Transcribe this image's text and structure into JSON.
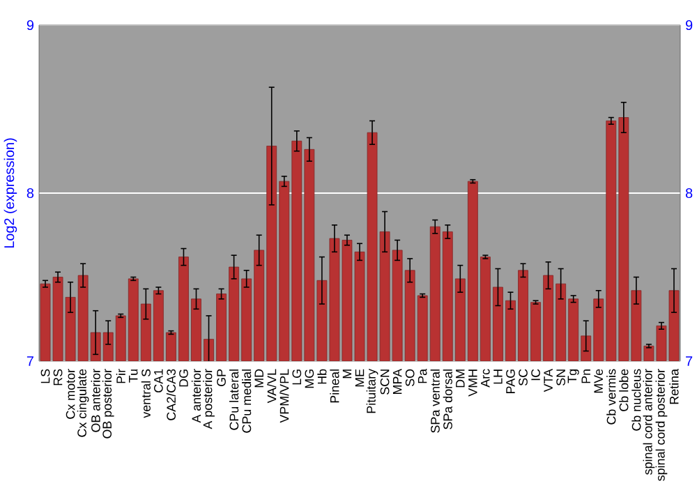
{
  "chart_data": {
    "type": "bar",
    "ylabel": "Log2 (expression)",
    "color": "#b83232",
    "categories": [
      "LS",
      "RS",
      "Cx motor",
      "Cx cingulate",
      "OB anterior",
      "OB posterior",
      "Pir",
      "Tu",
      "ventral S",
      "CA1",
      "CA2/CA3",
      "DG",
      "A anterior",
      "A posterior",
      "GP",
      "CPu lateral",
      "CPu medial",
      "MD",
      "VA/VL",
      "VPM/VPL",
      "LG",
      "MG",
      "Hb",
      "Pineal",
      "M",
      "ME",
      "Pituitary",
      "SCN",
      "MPA",
      "SO",
      "Pa",
      "SPa ventral",
      "SPa dorsal",
      "DM",
      "VMH",
      "Arc",
      "LH",
      "PAG",
      "SC",
      "IC",
      "VTA",
      "SN",
      "Tg",
      "Pn",
      "MVe",
      "Cb vermis",
      "Cb lobe",
      "Cb nucleus",
      "spinal cord anterior",
      "spinal cord posterior",
      "Retina"
    ],
    "values": [
      7.46,
      7.5,
      7.38,
      7.51,
      7.17,
      7.17,
      7.27,
      7.49,
      7.34,
      7.42,
      7.17,
      7.62,
      7.37,
      7.13,
      7.4,
      7.56,
      7.49,
      7.66,
      8.28,
      8.07,
      8.31,
      8.26,
      7.48,
      7.73,
      7.72,
      7.65,
      8.36,
      7.77,
      7.66,
      7.54,
      7.39,
      7.8,
      7.77,
      7.49,
      8.07,
      7.62,
      7.44,
      7.36,
      7.54,
      7.35,
      7.51,
      7.46,
      7.37,
      7.15,
      7.37,
      8.43,
      8.45,
      7.42,
      7.09,
      7.21,
      7.42
    ],
    "errors": [
      0.02,
      0.03,
      0.09,
      0.07,
      0.13,
      0.07,
      0.01,
      0.01,
      0.09,
      0.02,
      0.01,
      0.05,
      0.06,
      0.14,
      0.03,
      0.07,
      0.05,
      0.09,
      0.35,
      0.03,
      0.06,
      0.07,
      0.14,
      0.08,
      0.03,
      0.05,
      0.07,
      0.12,
      0.06,
      0.07,
      0.01,
      0.04,
      0.04,
      0.08,
      0.01,
      0.01,
      0.11,
      0.05,
      0.04,
      0.01,
      0.08,
      0.09,
      0.02,
      0.09,
      0.05,
      0.02,
      0.09,
      0.08,
      0.01,
      0.02,
      0.13
    ],
    "ylim": [
      7,
      9
    ],
    "yticks": [
      7,
      8,
      9
    ],
    "y2lim": [
      7,
      9
    ],
    "y2ticks": [
      7,
      8,
      9
    ],
    "grid": "y"
  }
}
